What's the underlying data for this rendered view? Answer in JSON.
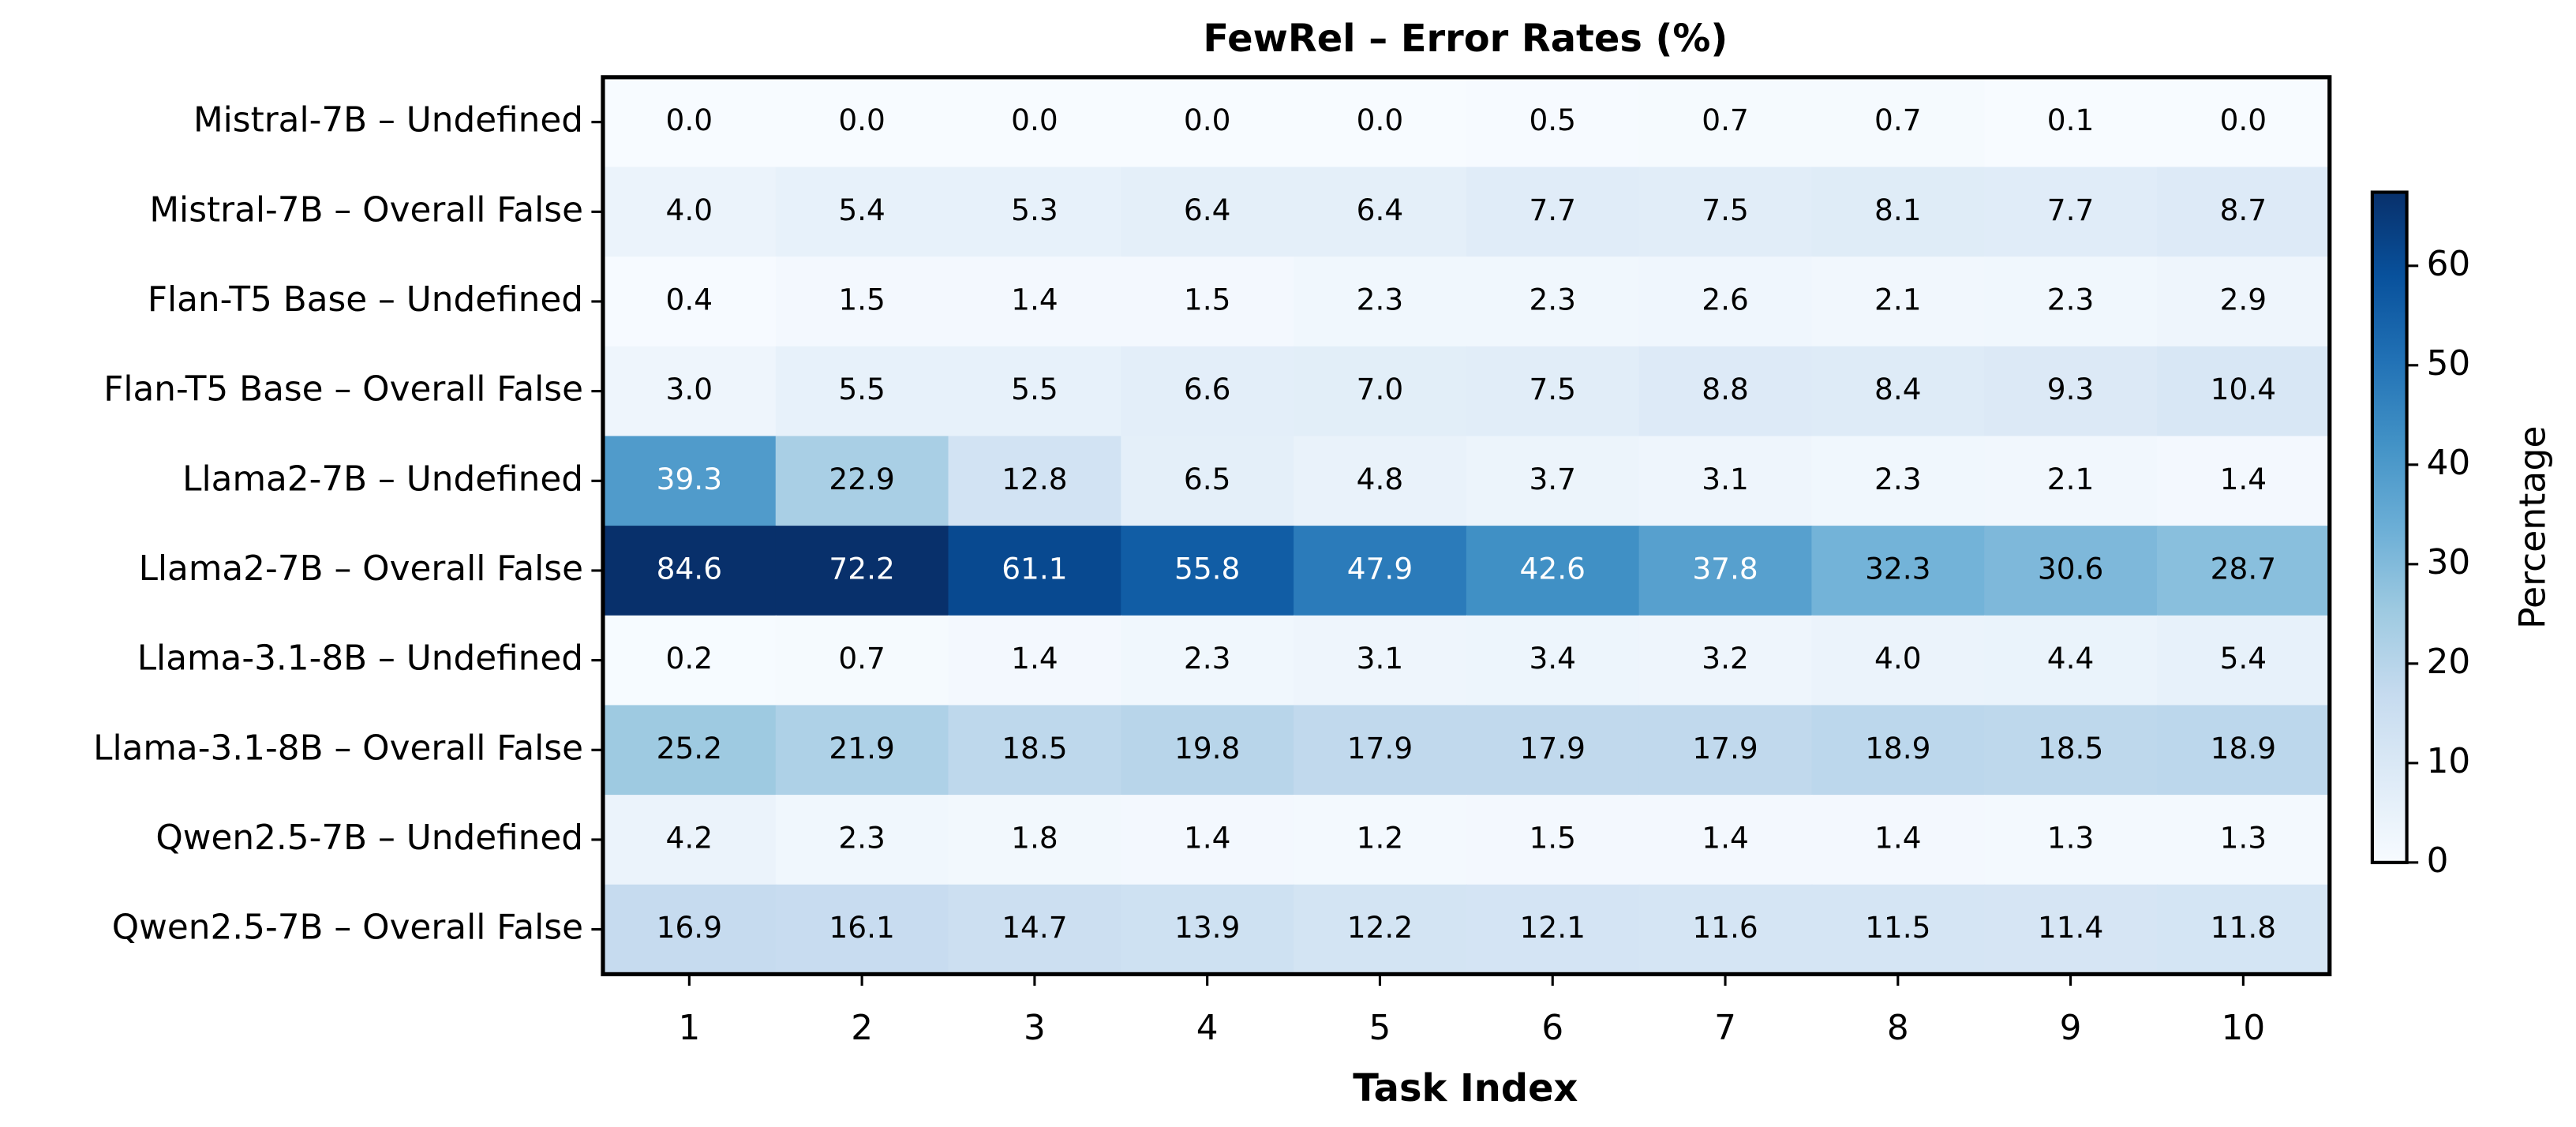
{
  "chart_data": {
    "type": "heatmap",
    "title": "FewRel – Error Rates (%)",
    "x_label": "Task Index",
    "categories": [
      "1",
      "2",
      "3",
      "4",
      "5",
      "6",
      "7",
      "8",
      "9",
      "10"
    ],
    "rows": [
      "Mistral-7B – Undefined",
      "Mistral-7B – Overall False",
      "Flan-T5 Base – Undefined",
      "Flan-T5 Base – Overall False",
      "Llama2-7B – Undefined",
      "Llama2-7B – Overall False",
      "Llama-3.1-8B – Undefined",
      "Llama-3.1-8B – Overall False",
      "Qwen2.5-7B – Undefined",
      "Qwen2.5-7B – Overall False"
    ],
    "values": [
      [
        0,
        0,
        0,
        0,
        0,
        0.5,
        0.7,
        0.7,
        0.1,
        0
      ],
      [
        4,
        5.4,
        5.3,
        6.4,
        6.4,
        7.7,
        7.5,
        8.1,
        7.7,
        8.7
      ],
      [
        0.4,
        1.5,
        1.4,
        1.5,
        2.3,
        2.3,
        2.6,
        2.1,
        2.3,
        2.9
      ],
      [
        3,
        5.5,
        5.5,
        6.6,
        7,
        7.5,
        8.8,
        8.4,
        9.3,
        10.4
      ],
      [
        39.3,
        22.9,
        12.8,
        6.5,
        4.8,
        3.7,
        3.1,
        2.3,
        2.1,
        1.4
      ],
      [
        84.6,
        72.2,
        61.1,
        55.8,
        47.9,
        42.6,
        37.8,
        32.3,
        30.6,
        28.7
      ],
      [
        0.2,
        0.7,
        1.4,
        2.3,
        3.1,
        3.4,
        3.2,
        4,
        4.4,
        5.4
      ],
      [
        25.2,
        21.9,
        18.5,
        19.8,
        17.9,
        17.9,
        17.9,
        18.9,
        18.5,
        18.9
      ],
      [
        4.2,
        2.3,
        1.8,
        1.4,
        1.2,
        1.5,
        1.4,
        1.4,
        1.3,
        1.3
      ],
      [
        16.9,
        16.1,
        14.7,
        13.9,
        12.2,
        12.1,
        11.6,
        11.5,
        11.4,
        11.8
      ]
    ],
    "value_labels": [
      [
        "0.0",
        "0.0",
        "0.0",
        "0.0",
        "0.0",
        "0.5",
        "0.7",
        "0.7",
        "0.1",
        "0.0"
      ],
      [
        "4.0",
        "5.4",
        "5.3",
        "6.4",
        "6.4",
        "7.7",
        "7.5",
        "8.1",
        "7.7",
        "8.7"
      ],
      [
        "0.4",
        "1.5",
        "1.4",
        "1.5",
        "2.3",
        "2.3",
        "2.6",
        "2.1",
        "2.3",
        "2.9"
      ],
      [
        "3.0",
        "5.5",
        "5.5",
        "6.6",
        "7.0",
        "7.5",
        "8.8",
        "8.4",
        "9.3",
        "10.4"
      ],
      [
        "39.3",
        "22.9",
        "12.8",
        "6.5",
        "4.8",
        "3.7",
        "3.1",
        "2.3",
        "2.1",
        "1.4"
      ],
      [
        "84.6",
        "72.2",
        "61.1",
        "55.8",
        "47.9",
        "42.6",
        "37.8",
        "32.3",
        "30.6",
        "28.7"
      ],
      [
        "0.2",
        "0.7",
        "1.4",
        "2.3",
        "3.1",
        "3.4",
        "3.2",
        "4.0",
        "4.4",
        "5.4"
      ],
      [
        "25.2",
        "21.9",
        "18.5",
        "19.8",
        "17.9",
        "17.9",
        "17.9",
        "18.9",
        "18.5",
        "18.9"
      ],
      [
        "4.2",
        "2.3",
        "1.8",
        "1.4",
        "1.2",
        "1.5",
        "1.4",
        "1.4",
        "1.3",
        "1.3"
      ],
      [
        "16.9",
        "16.1",
        "14.7",
        "13.9",
        "12.2",
        "12.1",
        "11.6",
        "11.5",
        "11.4",
        "11.8"
      ]
    ],
    "colorbar": {
      "label": "Percentage",
      "lim": [
        0,
        67.4
      ],
      "ticks": [
        0,
        10,
        20,
        30,
        40,
        50,
        60
      ],
      "colormap": "Blues"
    }
  }
}
